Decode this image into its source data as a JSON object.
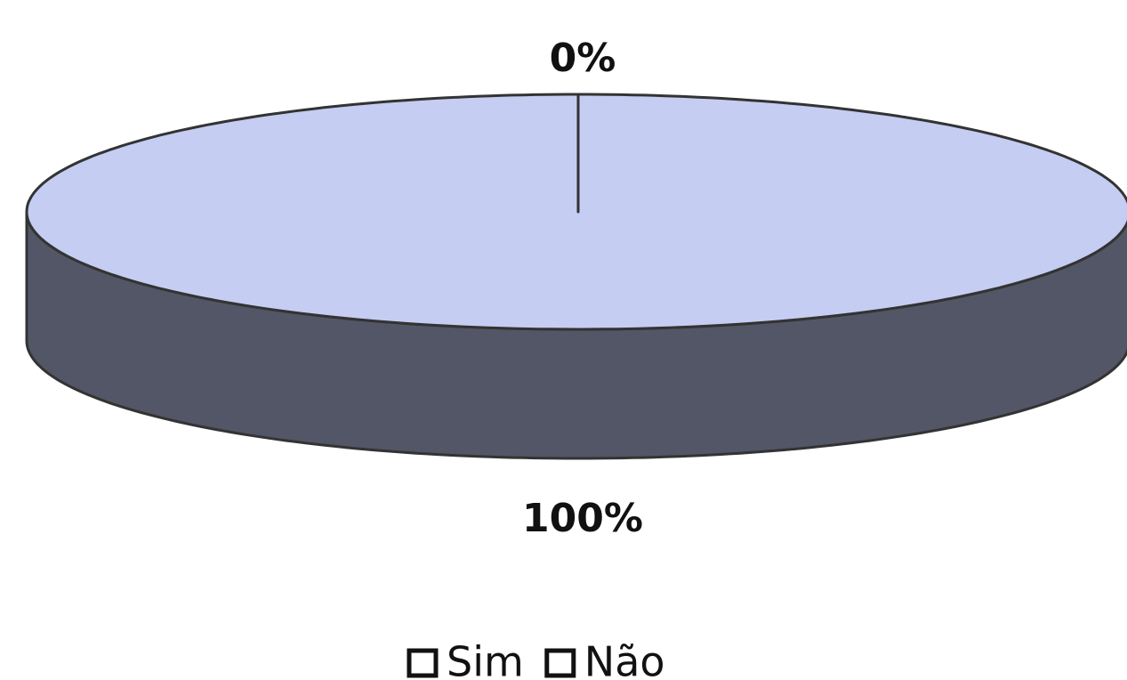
{
  "chart_data": {
    "type": "pie3d",
    "categories": [
      "Sim",
      "Não"
    ],
    "values": [
      0,
      100
    ],
    "value_labels": [
      "0%",
      "100%"
    ],
    "colors": [
      "#8a9ad8",
      "#c5cdf2"
    ],
    "legend": "bottom"
  }
}
